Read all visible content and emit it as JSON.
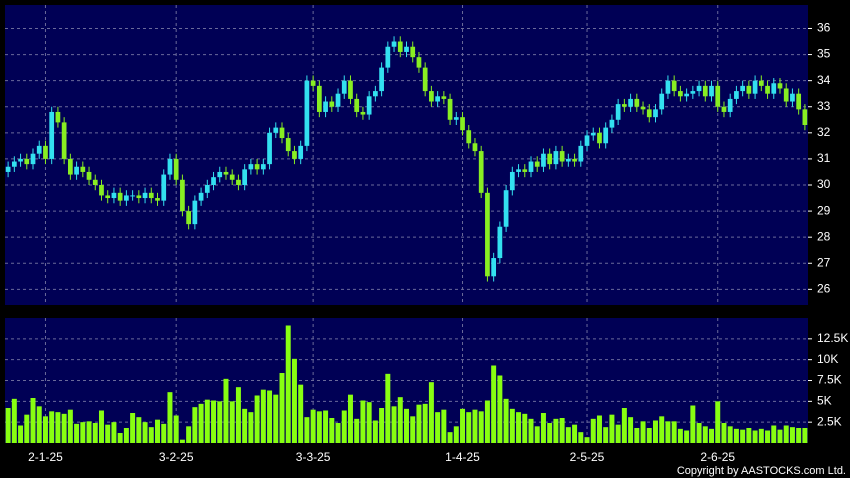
{
  "chart_data": [
    {
      "type": "candlestick",
      "up_color": "#33e0f0",
      "down_color": "#88ee22",
      "grid": true,
      "ylim": [
        25.4,
        36.9
      ],
      "yticks": [
        26,
        27,
        28,
        29,
        30,
        31,
        32,
        33,
        34,
        35,
        36
      ],
      "categories": [
        null,
        null,
        null,
        null,
        null,
        null,
        "2-1-25",
        null,
        null,
        null,
        null,
        null,
        null,
        null,
        null,
        null,
        null,
        null,
        null,
        null,
        null,
        null,
        null,
        null,
        null,
        null,
        null,
        "3-2-25",
        null,
        null,
        null,
        null,
        null,
        null,
        null,
        null,
        null,
        null,
        null,
        null,
        null,
        null,
        null,
        null,
        null,
        null,
        null,
        null,
        null,
        "3-3-25",
        null,
        null,
        null,
        null,
        null,
        null,
        null,
        null,
        null,
        null,
        null,
        null,
        null,
        null,
        null,
        null,
        null,
        null,
        null,
        null,
        null,
        null,
        null,
        "1-4-25",
        null,
        null,
        null,
        null,
        null,
        null,
        null,
        null,
        null,
        null,
        null,
        null,
        null,
        null,
        null,
        null,
        null,
        null,
        null,
        "2-5-25",
        null,
        null,
        null,
        null,
        null,
        null,
        null,
        null,
        null,
        null,
        null,
        null,
        null,
        null,
        null,
        null,
        null,
        null,
        null,
        null,
        "2-6-25",
        null,
        null,
        null,
        null,
        null,
        null,
        null,
        null,
        null,
        null,
        null,
        null,
        null,
        null
      ],
      "open": [
        30.5,
        30.7,
        30.9,
        31.0,
        30.8,
        31.2,
        31.5,
        31.0,
        32.8,
        32.4,
        31.0,
        30.4,
        30.7,
        30.5,
        30.2,
        30.0,
        29.6,
        29.5,
        29.7,
        29.4,
        29.6,
        29.6,
        29.5,
        29.7,
        29.5,
        29.4,
        30.4,
        31.0,
        30.2,
        29.0,
        28.5,
        29.4,
        29.7,
        30.0,
        30.3,
        30.5,
        30.4,
        30.2,
        30.0,
        30.6,
        30.8,
        30.6,
        30.8,
        32.0,
        32.2,
        31.8,
        31.3,
        31.0,
        31.5,
        34.0,
        33.8,
        32.8,
        33.2,
        33.0,
        33.5,
        34.0,
        33.3,
        32.8,
        32.7,
        33.4,
        33.6,
        34.5,
        35.3,
        35.5,
        35.1,
        35.3,
        34.9,
        34.5,
        33.6,
        33.2,
        33.4,
        33.3,
        32.5,
        32.6,
        32.1,
        31.6,
        31.3,
        29.7,
        26.5,
        27.2,
        28.4,
        29.8,
        30.5,
        30.6,
        30.5,
        30.9,
        30.7,
        31.2,
        30.8,
        31.3,
        30.9,
        31.0,
        30.9,
        31.5,
        31.9,
        32.0,
        31.6,
        32.2,
        32.5,
        33.1,
        33.0,
        33.3,
        33.0,
        32.9,
        32.6,
        32.9,
        33.5,
        34.0,
        33.6,
        33.4,
        33.5,
        33.6,
        33.8,
        33.4,
        33.8,
        33.0,
        32.8,
        33.3,
        33.6,
        33.8,
        33.5,
        34.0,
        33.8,
        33.5,
        33.9,
        33.7,
        33.2,
        33.5,
        32.9
      ],
      "high": [
        30.9,
        31.1,
        31.2,
        31.2,
        31.4,
        31.7,
        31.7,
        33.0,
        33.0,
        32.6,
        31.2,
        30.9,
        30.9,
        30.7,
        30.4,
        30.2,
        29.8,
        29.9,
        29.9,
        29.8,
        29.8,
        29.8,
        29.9,
        29.9,
        29.7,
        30.6,
        31.2,
        31.2,
        30.4,
        29.2,
        29.6,
        29.9,
        30.2,
        30.5,
        30.7,
        30.7,
        30.6,
        30.4,
        30.8,
        31.0,
        31.0,
        31.0,
        32.2,
        32.4,
        32.4,
        32.0,
        31.5,
        31.7,
        34.2,
        34.2,
        34.0,
        33.4,
        33.4,
        33.7,
        34.2,
        34.2,
        33.5,
        33.0,
        33.6,
        33.8,
        34.7,
        35.5,
        35.7,
        35.7,
        35.5,
        35.5,
        35.1,
        34.7,
        33.8,
        33.6,
        33.6,
        33.5,
        32.8,
        32.8,
        32.3,
        31.8,
        31.5,
        29.9,
        27.4,
        28.6,
        30.0,
        30.7,
        30.8,
        30.8,
        31.1,
        31.1,
        31.4,
        31.4,
        31.5,
        31.5,
        31.2,
        31.2,
        31.7,
        32.1,
        32.2,
        32.2,
        32.4,
        32.7,
        33.3,
        33.3,
        33.5,
        33.5,
        33.2,
        33.1,
        33.1,
        33.7,
        34.2,
        34.2,
        33.8,
        33.7,
        33.8,
        34.0,
        34.0,
        34.0,
        34.0,
        33.2,
        33.5,
        33.8,
        34.0,
        34.0,
        34.2,
        34.2,
        34.0,
        34.1,
        34.1,
        33.9,
        33.7,
        33.7,
        33.1
      ],
      "low": [
        30.3,
        30.5,
        30.7,
        30.6,
        30.6,
        31.0,
        30.8,
        30.8,
        32.2,
        30.8,
        30.2,
        30.2,
        30.3,
        30.0,
        29.8,
        29.4,
        29.3,
        29.3,
        29.2,
        29.2,
        29.4,
        29.3,
        29.3,
        29.3,
        29.2,
        29.2,
        30.2,
        30.0,
        28.8,
        28.3,
        28.3,
        29.2,
        29.5,
        29.8,
        30.1,
        30.2,
        30.0,
        29.8,
        29.8,
        30.4,
        30.4,
        30.4,
        30.6,
        31.8,
        31.6,
        31.1,
        30.8,
        30.8,
        31.3,
        33.6,
        32.6,
        32.6,
        32.8,
        32.8,
        33.3,
        33.1,
        32.6,
        32.5,
        32.5,
        33.2,
        33.4,
        34.3,
        35.1,
        34.9,
        34.9,
        34.7,
        34.3,
        33.4,
        33.0,
        33.0,
        33.1,
        32.3,
        32.3,
        31.9,
        31.4,
        31.1,
        29.5,
        26.3,
        26.3,
        27.0,
        28.2,
        29.6,
        30.3,
        30.3,
        30.3,
        30.5,
        30.5,
        30.6,
        30.6,
        30.7,
        30.7,
        30.7,
        30.7,
        31.3,
        31.7,
        31.4,
        31.4,
        32.0,
        32.3,
        32.8,
        32.8,
        32.8,
        32.7,
        32.4,
        32.4,
        32.7,
        33.3,
        33.4,
        33.2,
        33.2,
        33.3,
        33.4,
        33.2,
        33.2,
        32.8,
        32.6,
        32.6,
        33.1,
        33.4,
        33.3,
        33.3,
        33.6,
        33.3,
        33.3,
        33.5,
        33.0,
        33.0,
        32.7,
        32.1
      ],
      "close": [
        30.7,
        30.9,
        31.0,
        30.8,
        31.2,
        31.5,
        31.0,
        32.8,
        32.4,
        31.0,
        30.4,
        30.7,
        30.5,
        30.2,
        30.0,
        29.6,
        29.5,
        29.7,
        29.4,
        29.6,
        29.6,
        29.5,
        29.7,
        29.5,
        29.4,
        30.4,
        31.0,
        30.2,
        29.0,
        28.5,
        29.4,
        29.7,
        30.0,
        30.3,
        30.5,
        30.4,
        30.2,
        30.0,
        30.6,
        30.8,
        30.6,
        30.8,
        32.0,
        32.2,
        31.8,
        31.3,
        31.0,
        31.5,
        34.0,
        33.8,
        32.8,
        33.2,
        33.0,
        33.5,
        34.0,
        33.3,
        32.8,
        32.7,
        33.4,
        33.6,
        34.5,
        35.3,
        35.5,
        35.1,
        35.3,
        34.9,
        34.5,
        33.6,
        33.2,
        33.4,
        33.3,
        32.5,
        32.6,
        32.1,
        31.6,
        31.3,
        29.7,
        26.5,
        27.2,
        28.4,
        29.8,
        30.5,
        30.6,
        30.5,
        30.9,
        30.7,
        31.2,
        30.8,
        31.3,
        30.9,
        31.0,
        30.9,
        31.5,
        31.9,
        32.0,
        31.6,
        32.2,
        32.5,
        33.1,
        33.0,
        33.3,
        33.0,
        32.9,
        32.6,
        32.9,
        33.5,
        34.0,
        33.6,
        33.4,
        33.5,
        33.6,
        33.8,
        33.4,
        33.8,
        33.0,
        32.8,
        33.3,
        33.6,
        33.8,
        33.5,
        34.0,
        33.8,
        33.5,
        33.9,
        33.7,
        33.2,
        33.5,
        32.9,
        32.3
      ]
    },
    {
      "type": "bar",
      "color": "#88ff11",
      "grid": true,
      "ylim": [
        0,
        15000
      ],
      "yticks": [
        {
          "value": 2500,
          "label": "2.5K"
        },
        {
          "value": 5000,
          "label": "5K"
        },
        {
          "value": 7500,
          "label": "7.5K"
        },
        {
          "value": 10000,
          "label": "10K"
        },
        {
          "value": 12500,
          "label": "12.5K"
        }
      ],
      "values": [
        4200,
        5300,
        2100,
        3400,
        5400,
        4400,
        3200,
        3800,
        3700,
        3500,
        4000,
        2300,
        2500,
        2600,
        2400,
        3900,
        2200,
        2500,
        1200,
        1800,
        3600,
        3100,
        2500,
        1900,
        2800,
        2300,
        6100,
        3300,
        400,
        2000,
        4300,
        4700,
        5200,
        5100,
        5000,
        7700,
        5000,
        6700,
        4100,
        3700,
        5700,
        6400,
        6300,
        5800,
        8400,
        14100,
        10100,
        7000,
        3100,
        4000,
        3800,
        3900,
        3000,
        2400,
        3900,
        5800,
        2900,
        5100,
        4900,
        2700,
        4200,
        8300,
        4400,
        5500,
        4100,
        3200,
        4600,
        4700,
        7300,
        3700,
        4000,
        1300,
        2000,
        4100,
        3700,
        4000,
        3800,
        5100,
        9300,
        8100,
        5300,
        4100,
        3700,
        3500,
        2900,
        2000,
        3600,
        2400,
        2900,
        3000,
        1900,
        2200,
        1300,
        700,
        2900,
        3300,
        1900,
        3400,
        2200,
        4200,
        3100,
        1800,
        2600,
        1800,
        2700,
        3200,
        2600,
        2600,
        1700,
        1500,
        4500,
        2400,
        2000,
        1700,
        5000,
        2400,
        2000,
        1700,
        1600,
        1800,
        1500,
        1700,
        1500,
        2100,
        1600,
        2100,
        1900,
        1800,
        1800
      ]
    }
  ],
  "copyright": "Copyright by AASTOCKS.com Ltd."
}
